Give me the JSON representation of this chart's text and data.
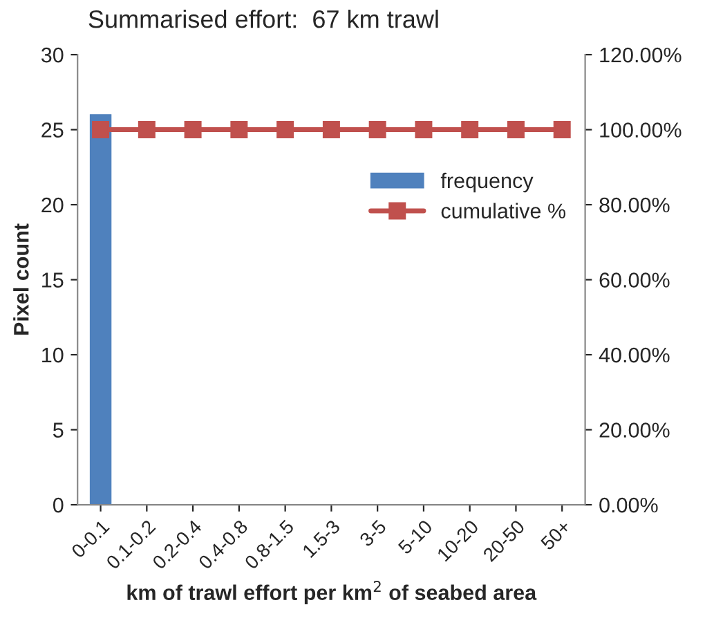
{
  "chart_data": {
    "type": "bar",
    "title": "Summarised effort:  67 km trawl",
    "xlabel": "km of trawl effort per km$^{2}$ of seabed area",
    "ylabel": "Pixel count",
    "categories": [
      "0-0.1",
      "0.1-0.2",
      "0.2-0.4",
      "0.4-0.8",
      "0.8-1.5",
      "1.5-3",
      "3-5",
      "5-10",
      "10-20",
      "20-50",
      "50+"
    ],
    "series": [
      {
        "name": "frequency",
        "color": "#4f81bd",
        "values": [
          26,
          0,
          0,
          0,
          0,
          0,
          0,
          0,
          0,
          0,
          0
        ]
      },
      {
        "name": "cumulative %",
        "type": "line",
        "axis": "y2",
        "color": "#c0504d",
        "marker": "square",
        "values": [
          100,
          100,
          100,
          100,
          100,
          100,
          100,
          100,
          100,
          100,
          100
        ]
      }
    ],
    "ylim": [
      0,
      30
    ],
    "yticks": [
      0,
      5,
      10,
      15,
      20,
      25,
      30
    ],
    "y2lim": [
      0,
      120
    ],
    "y2ticks": [
      {
        "value": 0,
        "label": "0.00%"
      },
      {
        "value": 20,
        "label": "20.00%"
      },
      {
        "value": 40,
        "label": "40.00%"
      },
      {
        "value": 60,
        "label": "60.00%"
      },
      {
        "value": 80,
        "label": "80.00%"
      },
      {
        "value": 100,
        "label": "100.00%"
      },
      {
        "value": 120,
        "label": "120.00%"
      }
    ],
    "legend": "right",
    "grid": false
  }
}
